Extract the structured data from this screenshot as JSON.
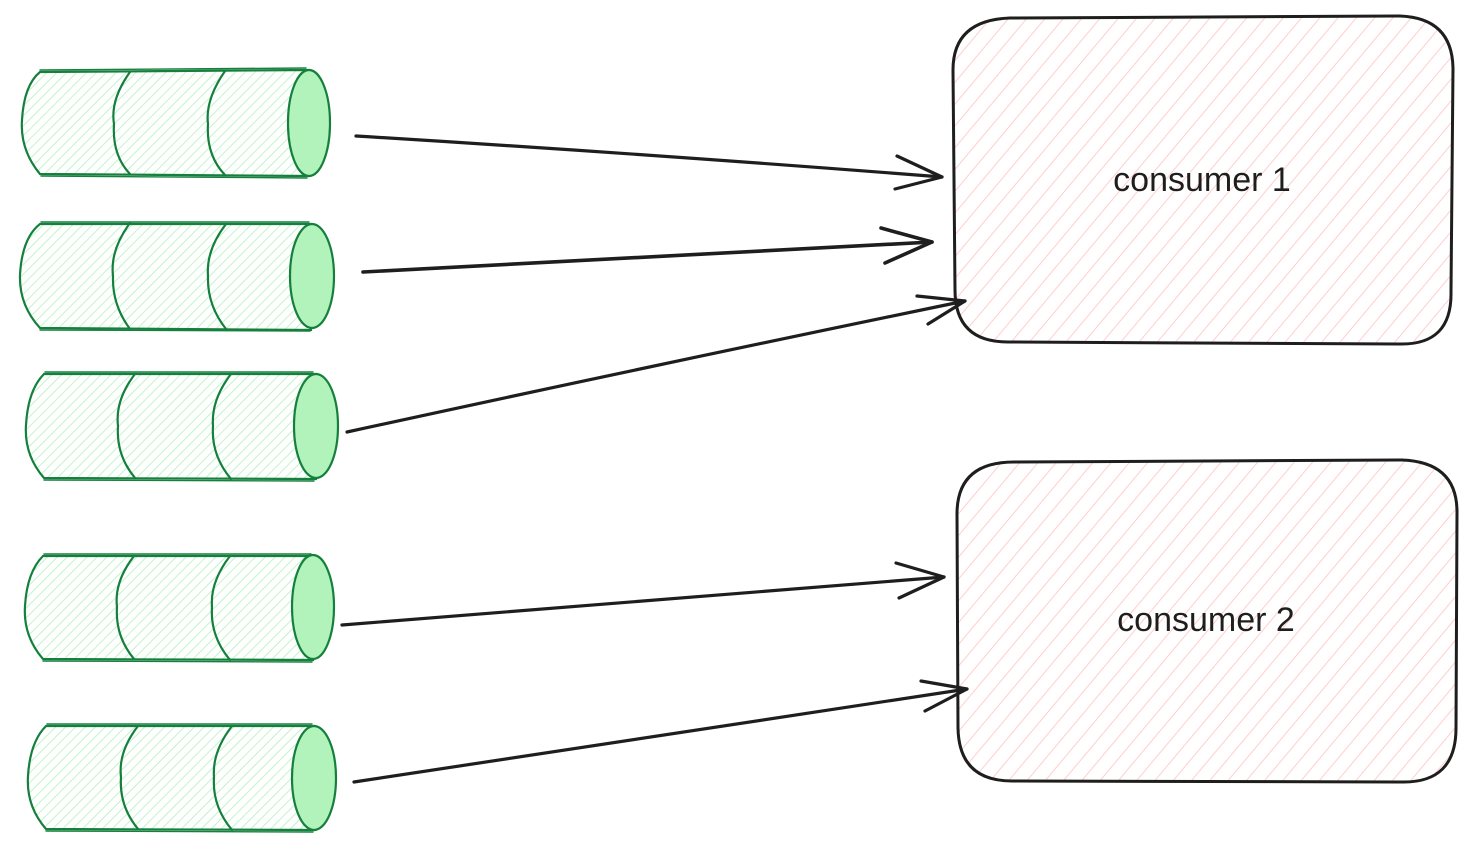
{
  "consumers": [
    {
      "label": "consumer 1"
    },
    {
      "label": "consumer 2"
    }
  ],
  "colors": {
    "queue_stroke": "#15803d",
    "queue_fill": "#b2f2bb",
    "consumer_stroke": "#1e1e1e",
    "consumer_hatch": "#ffc9c9",
    "arrow": "#1e1e1e"
  }
}
